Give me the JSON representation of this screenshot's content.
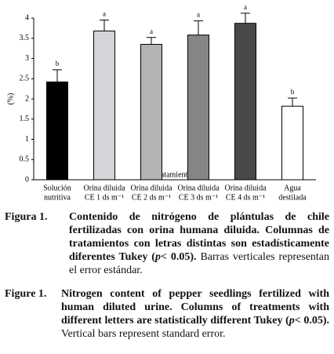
{
  "chart_data": {
    "type": "bar",
    "categories": [
      [
        "Solución",
        "nutritiva"
      ],
      [
        "Orina diluida",
        "CE 1 ds m⁻¹"
      ],
      [
        "Orina diluida",
        "CE 2 ds m⁻¹"
      ],
      [
        "Orina diluida",
        "CE 3 ds m⁻¹"
      ],
      [
        "Orina diluida",
        "CE 4 ds m⁻¹"
      ],
      [
        "Agua",
        "destilada"
      ]
    ],
    "values": [
      2.42,
      3.68,
      3.35,
      3.58,
      3.87,
      1.82
    ],
    "errors": [
      0.3,
      0.27,
      0.17,
      0.35,
      0.25,
      0.2
    ],
    "significance_letters": [
      "b",
      "a",
      "a",
      "a",
      "a",
      "b"
    ],
    "colors": [
      "#000000",
      "#d4d5d9",
      "#b3b3b5",
      "#858587",
      "#48494b",
      "#ffffff"
    ],
    "ylabel": "(%)",
    "xlabel": "Tratamientos",
    "ylim": [
      0,
      4
    ],
    "yticks": [
      0,
      0.5,
      1,
      1.5,
      2,
      2.5,
      3,
      3.5,
      4
    ]
  },
  "captions": {
    "es": {
      "label": "Figura 1.",
      "bold": "Contenido de nitrógeno de plántulas de chile fertilizadas con orina humana diluida. Columnas de tratamientos con letras distintas son estadísticamente diferentes Tukey (",
      "italic": "p",
      "bold_end": "< 0.05).",
      "regular": "Barras verticales representan el error estándar."
    },
    "en": {
      "label": "Figure 1.",
      "bold": "Nitrogen content of pepper seedlings fertilized with human diluted urine. Columns of treatments with different letters are statistically different Tukey (",
      "italic": "p",
      "bold_end": "< 0.05).",
      "regular": "Vertical bars represent standard error."
    }
  }
}
